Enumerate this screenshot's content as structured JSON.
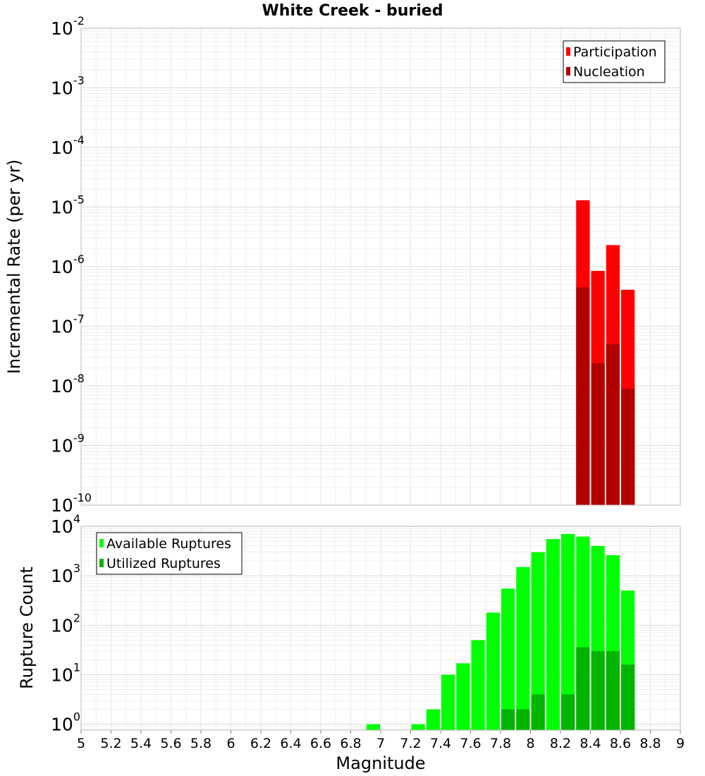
{
  "chart_data": [
    {
      "type": "bar",
      "scale": "log",
      "title": "White Creek - buried",
      "xlabel": "",
      "ylabel": "Incremental Rate (per yr)",
      "xlim": [
        5,
        9
      ],
      "ylim_exp": [
        -10,
        -2
      ],
      "y_tick_exponents": [
        -10,
        -9,
        -8,
        -7,
        -6,
        -5,
        -4,
        -3,
        -2
      ],
      "bin_width": 0.1,
      "legend": "top-right",
      "series": [
        {
          "name": "Participation",
          "color": "#ff0000",
          "points": [
            {
              "x": 8.35,
              "y": 1.3e-05
            },
            {
              "x": 8.45,
              "y": 8.5e-07
            },
            {
              "x": 8.55,
              "y": 2.3e-06
            },
            {
              "x": 8.65,
              "y": 4.1e-07
            }
          ]
        },
        {
          "name": "Nucleation",
          "color": "#b20000",
          "points": [
            {
              "x": 8.35,
              "y": 4.5e-07
            },
            {
              "x": 8.45,
              "y": 2.4e-08
            },
            {
              "x": 8.55,
              "y": 5e-08
            },
            {
              "x": 8.65,
              "y": 9e-09
            }
          ]
        }
      ]
    },
    {
      "type": "bar",
      "scale": "log",
      "xlabel": "Magnitude",
      "ylabel": "Rupture Count",
      "xlim": [
        5,
        9
      ],
      "ylim_exp": [
        -0.12,
        4
      ],
      "y_tick_exponents": [
        0,
        1,
        2,
        3,
        4
      ],
      "x_ticks": [
        "5",
        "5.2",
        "5.4",
        "5.6",
        "5.8",
        "6",
        "6.2",
        "6.4",
        "6.6",
        "6.8",
        "7",
        "7.2",
        "7.4",
        "7.6",
        "7.8",
        "8",
        "8.2",
        "8.4",
        "8.6",
        "8.8",
        "9"
      ],
      "bin_width": 0.1,
      "legend": "top-left",
      "series": [
        {
          "name": "Available Ruptures",
          "color": "#00ff00",
          "points": [
            {
              "x": 6.95,
              "y": 1
            },
            {
              "x": 7.25,
              "y": 1
            },
            {
              "x": 7.35,
              "y": 2
            },
            {
              "x": 7.45,
              "y": 10
            },
            {
              "x": 7.55,
              "y": 17
            },
            {
              "x": 7.65,
              "y": 50
            },
            {
              "x": 7.75,
              "y": 180
            },
            {
              "x": 7.85,
              "y": 550
            },
            {
              "x": 7.95,
              "y": 1500
            },
            {
              "x": 8.05,
              "y": 3000
            },
            {
              "x": 8.15,
              "y": 5500
            },
            {
              "x": 8.25,
              "y": 7000
            },
            {
              "x": 8.35,
              "y": 6200
            },
            {
              "x": 8.45,
              "y": 4000
            },
            {
              "x": 8.55,
              "y": 2600
            },
            {
              "x": 8.65,
              "y": 500
            }
          ]
        },
        {
          "name": "Utilized Ruptures",
          "color": "#00b400",
          "points": [
            {
              "x": 7.85,
              "y": 2
            },
            {
              "x": 7.95,
              "y": 2
            },
            {
              "x": 8.05,
              "y": 4
            },
            {
              "x": 8.25,
              "y": 4
            },
            {
              "x": 8.35,
              "y": 36
            },
            {
              "x": 8.45,
              "y": 30
            },
            {
              "x": 8.55,
              "y": 30
            },
            {
              "x": 8.65,
              "y": 16
            }
          ]
        }
      ]
    }
  ]
}
